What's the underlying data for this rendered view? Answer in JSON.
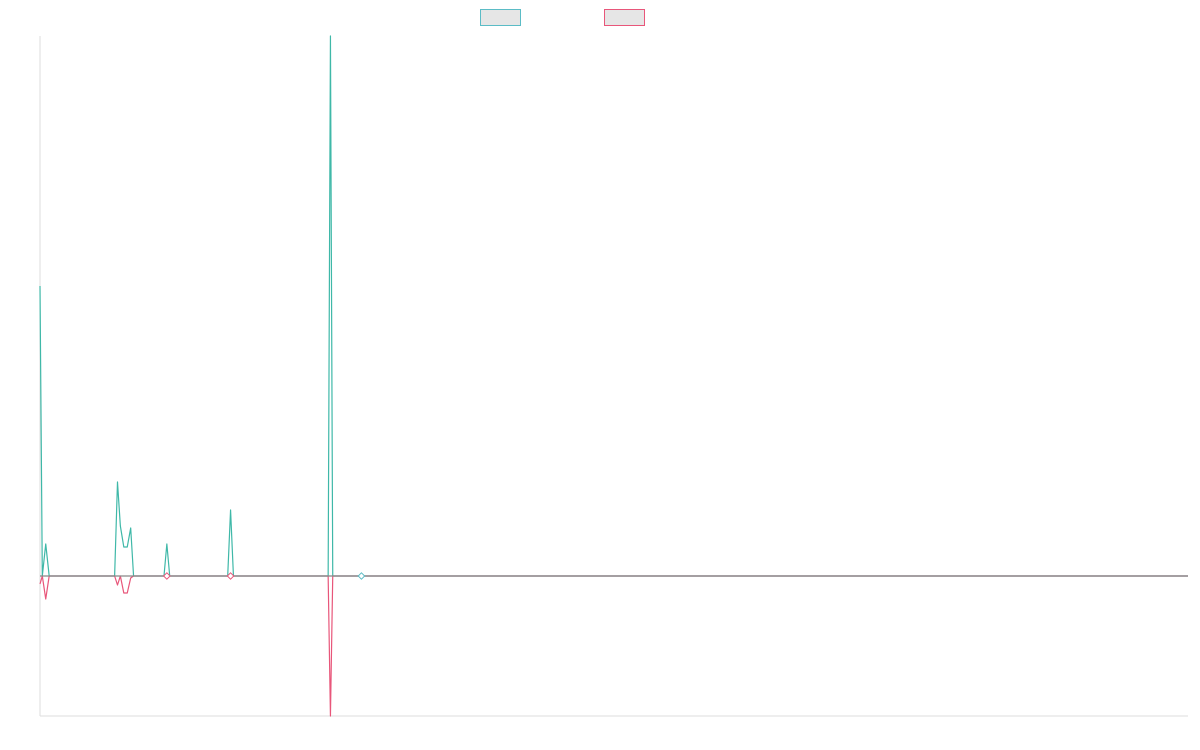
{
  "chart_data": {
    "type": "line",
    "title": "",
    "xlabel": "",
    "ylabel": "",
    "legend_position": "top-center",
    "grid": false,
    "x_count": 200,
    "ylim": [
      -14,
      54
    ],
    "baseline_value": 0,
    "colors": {
      "series_a": "#3fb8a8",
      "series_b": "#e8567a",
      "baseline": "#888888",
      "axis": "#dddddd",
      "legend_fill": "#e6e6e6",
      "legend_a_border": "#5bbcc6",
      "legend_b_border": "#e8567a"
    },
    "series": [
      {
        "values": [
          {
            "x": 0,
            "y": 29
          },
          {
            "x": 0.4,
            "y": 0
          },
          {
            "x": 1,
            "y": 3.2
          },
          {
            "x": 1.6,
            "y": 0
          },
          {
            "x": 13,
            "y": 0
          },
          {
            "x": 13.5,
            "y": 9.4
          },
          {
            "x": 14,
            "y": 5
          },
          {
            "x": 14.6,
            "y": 2.9
          },
          {
            "x": 15.2,
            "y": 2.9
          },
          {
            "x": 15.8,
            "y": 4.8
          },
          {
            "x": 16.3,
            "y": 0
          },
          {
            "x": 21.6,
            "y": 0
          },
          {
            "x": 22.1,
            "y": 3.2
          },
          {
            "x": 22.6,
            "y": 0
          },
          {
            "x": 32.7,
            "y": 0
          },
          {
            "x": 33.2,
            "y": 6.6
          },
          {
            "x": 33.7,
            "y": 0
          },
          {
            "x": 50.2,
            "y": 0
          },
          {
            "x": 50.6,
            "y": 54
          },
          {
            "x": 51,
            "y": 0
          },
          {
            "x": 200,
            "y": 0
          }
        ]
      },
      {
        "values": [
          {
            "x": 0,
            "y": -0.8
          },
          {
            "x": 0.4,
            "y": 0
          },
          {
            "x": 1,
            "y": -2.3
          },
          {
            "x": 1.6,
            "y": 0
          },
          {
            "x": 13,
            "y": 0
          },
          {
            "x": 13.5,
            "y": -0.9
          },
          {
            "x": 14,
            "y": 0
          },
          {
            "x": 14.6,
            "y": -1.7
          },
          {
            "x": 15.2,
            "y": -1.7
          },
          {
            "x": 15.8,
            "y": -0.2
          },
          {
            "x": 16.3,
            "y": 0
          },
          {
            "x": 50.2,
            "y": 0
          },
          {
            "x": 50.6,
            "y": -14
          },
          {
            "x": 51,
            "y": 0
          },
          {
            "x": 200,
            "y": 0
          }
        ]
      }
    ],
    "markers": [
      {
        "x": 22.1,
        "y": 0,
        "color": "#e8567a"
      },
      {
        "x": 33.2,
        "y": 0,
        "color": "#e8567a"
      },
      {
        "x": 56,
        "y": 0,
        "color": "#5bbcc6"
      }
    ]
  }
}
